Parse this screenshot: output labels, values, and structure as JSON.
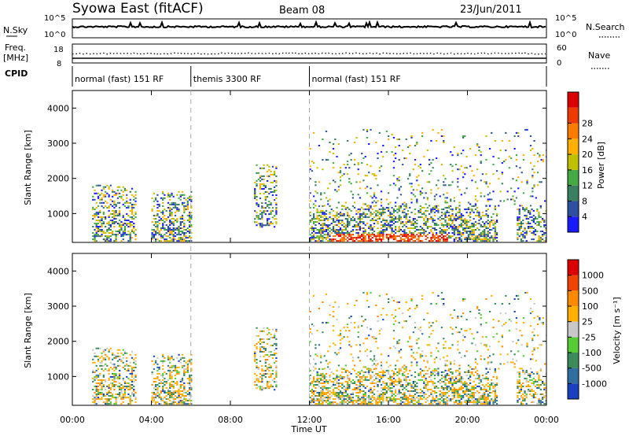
{
  "header": {
    "title": "Syowa East (fitACF)",
    "beam": "Beam 08",
    "date": "23/Jun/2011"
  },
  "top_panels": {
    "nsky_label": "N.Sky",
    "nsearch_label": "N.Search",
    "n_left_ticks": [
      "10^5",
      "10^0"
    ],
    "n_right_ticks": [
      "10^5",
      "10^0"
    ],
    "freq_label_1": "Freq.",
    "freq_label_2": "[MHz]",
    "freq_ticks": [
      "18",
      "8"
    ],
    "nave_label": "Nave",
    "nave_ticks": [
      "60",
      "0"
    ],
    "cpid_label": "CPID",
    "modes": [
      {
        "label": "normal (fast) 151 RF",
        "start_h": 0,
        "end_h": 6
      },
      {
        "label": "themis 3300 RF",
        "start_h": 6,
        "end_h": 12
      },
      {
        "label": "normal (fast) 151 RF",
        "start_h": 12,
        "end_h": 24
      }
    ]
  },
  "axes": {
    "ylabel": "Slant Range [km]",
    "xlabel": "Time UT",
    "xticks": [
      "00:00",
      "04:00",
      "08:00",
      "12:00",
      "16:00",
      "20:00",
      "00:00"
    ],
    "yticks": [
      "1000",
      "2000",
      "3000",
      "4000"
    ],
    "ylim": [
      180,
      4500
    ],
    "xlim": [
      0,
      24
    ]
  },
  "colorbars": {
    "power": {
      "label": "Power [dB]",
      "ticks": [
        "4",
        "8",
        "12",
        "16",
        "20",
        "24",
        "28"
      ],
      "colors": [
        "#1a1aff",
        "#2f4f9f",
        "#3a7f5f",
        "#44aa44",
        "#c0c000",
        "#ffb000",
        "#ff7a00",
        "#ee3a00",
        "#dd0000"
      ]
    },
    "velocity": {
      "label": "Velocity [m s⁻¹]",
      "ticks": [
        "1000",
        "500",
        "100",
        "25",
        "-25",
        "-100",
        "-500",
        "-1000"
      ],
      "colors": [
        "#1a3fbf",
        "#2f6fa0",
        "#3a8a5a",
        "#55cc33",
        "#c8c8c8",
        "#ffb000",
        "#ff8a00",
        "#ee4400",
        "#dd0000"
      ]
    }
  },
  "chart_data": {
    "type": "heatmap",
    "title": "Syowa East (fitACF)",
    "xlabel": "Time UT",
    "ylabel": "Slant Range [km]",
    "xlim": [
      0,
      24
    ],
    "ylim": [
      180,
      4500
    ],
    "scatter_regions": [
      {
        "t0": 1.0,
        "t1": 3.2,
        "r0": 200,
        "r1": 1800,
        "density": 0.45
      },
      {
        "t0": 4.0,
        "t1": 6.0,
        "r0": 200,
        "r1": 1600,
        "density": 0.5
      },
      {
        "t0": 9.2,
        "t1": 10.3,
        "r0": 600,
        "r1": 2400,
        "density": 0.35
      },
      {
        "t0": 12.0,
        "t1": 21.5,
        "r0": 200,
        "r1": 1200,
        "density": 0.55
      },
      {
        "t0": 12.0,
        "t1": 24.0,
        "r0": 1200,
        "r1": 3400,
        "density": 0.08
      },
      {
        "t0": 22.5,
        "t1": 24.0,
        "r0": 200,
        "r1": 1200,
        "density": 0.4
      }
    ]
  }
}
